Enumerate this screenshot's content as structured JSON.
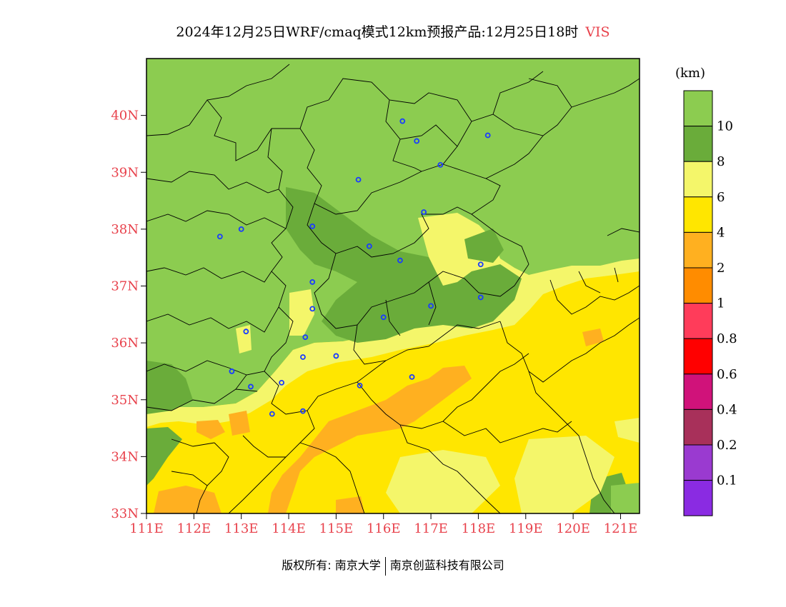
{
  "title": {
    "main": "2024年12月25日WRF/cmaq模式12km预报产品:12月25日18时",
    "variable": "VIS"
  },
  "footer": {
    "left": "版权所有: 南京大学",
    "right": "南京创蓝科技有限公司"
  },
  "map": {
    "lon_range": [
      111,
      121.4
    ],
    "lat_range": [
      33,
      41
    ],
    "lat_labels": [
      "40N",
      "39N",
      "38N",
      "37N",
      "36N",
      "35N",
      "34N",
      "33N"
    ],
    "lon_labels": [
      "111E",
      "112E",
      "113E",
      "114E",
      "115E",
      "116E",
      "117E",
      "118E",
      "119E",
      "120E",
      "121E"
    ]
  },
  "colorbar": {
    "unit": "(km)",
    "levels": [
      {
        "color": "#8ccc50",
        "label": "10"
      },
      {
        "color": "#6aac3a",
        "label": "8"
      },
      {
        "color": "#f4f66a",
        "label": "6"
      },
      {
        "color": "#ffe600",
        "label": "4"
      },
      {
        "color": "#ffb020",
        "label": "2"
      },
      {
        "color": "#ff8c00",
        "label": "1"
      },
      {
        "color": "#ff3c5a",
        "label": "0.8"
      },
      {
        "color": "#ff0000",
        "label": "0.6"
      },
      {
        "color": "#d0127a",
        "label": "0.4"
      },
      {
        "color": "#a8305a",
        "label": "0.2"
      },
      {
        "color": "#9a3ad0",
        "label": "0.1"
      },
      {
        "color": "#8a2be2",
        "label": ""
      }
    ]
  },
  "stations": [
    [
      116.4,
      39.9
    ],
    [
      116.7,
      39.55
    ],
    [
      117.2,
      39.13
    ],
    [
      118.2,
      39.65
    ],
    [
      115.47,
      38.87
    ],
    [
      116.85,
      38.3
    ],
    [
      114.5,
      38.05
    ],
    [
      113.0,
      38.0
    ],
    [
      112.55,
      37.87
    ],
    [
      115.7,
      37.7
    ],
    [
      116.35,
      37.45
    ],
    [
      118.05,
      37.38
    ],
    [
      118.05,
      36.8
    ],
    [
      114.5,
      37.07
    ],
    [
      114.5,
      36.6
    ],
    [
      116.0,
      36.45
    ],
    [
      117.0,
      36.65
    ],
    [
      113.1,
      36.2
    ],
    [
      114.35,
      36.1
    ],
    [
      114.3,
      35.75
    ],
    [
      115.0,
      35.77
    ],
    [
      116.6,
      35.4
    ],
    [
      112.8,
      35.5
    ],
    [
      113.2,
      35.23
    ],
    [
      113.85,
      35.3
    ],
    [
      115.5,
      35.25
    ],
    [
      114.3,
      34.8
    ],
    [
      113.65,
      34.75
    ]
  ]
}
